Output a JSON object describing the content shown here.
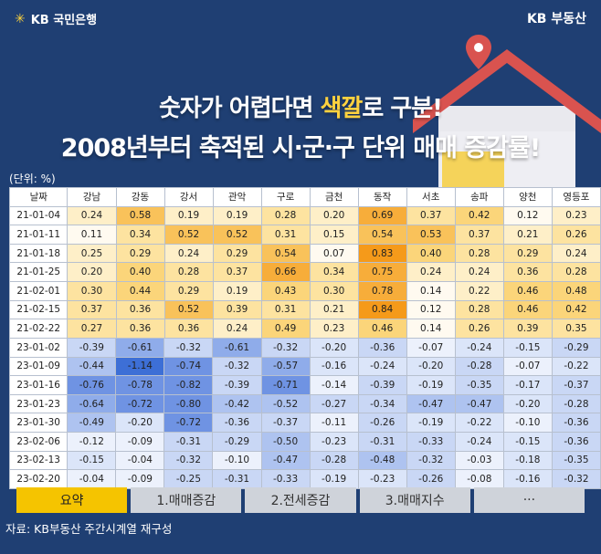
{
  "header": {
    "bank_name": "KB 국민은행",
    "brand_right": "KB 부동산"
  },
  "headline": {
    "line1_pre": "숫자가 어렵다면 ",
    "line1_highlight": "색깔",
    "line1_post": "로 구분!",
    "line2": "2008년부터 축적된 시·군·구 단위 매매 증감률!"
  },
  "unit_label": "(단위: %)",
  "columns": [
    "날짜",
    "강남",
    "강동",
    "강서",
    "관악",
    "구로",
    "금천",
    "동작",
    "서초",
    "송파",
    "양천",
    "영등포"
  ],
  "rows_2021": [
    [
      "21-01-04",
      "0.24",
      "0.58",
      "0.19",
      "0.19",
      "0.28",
      "0.20",
      "0.69",
      "0.37",
      "0.42",
      "0.12",
      "0.23"
    ],
    [
      "21-01-11",
      "0.11",
      "0.34",
      "0.52",
      "0.52",
      "0.31",
      "0.15",
      "0.54",
      "0.53",
      "0.37",
      "0.21",
      "0.26"
    ],
    [
      "21-01-18",
      "0.25",
      "0.29",
      "0.24",
      "0.29",
      "0.54",
      "0.07",
      "0.83",
      "0.40",
      "0.28",
      "0.29",
      "0.24"
    ],
    [
      "21-01-25",
      "0.20",
      "0.40",
      "0.28",
      "0.37",
      "0.66",
      "0.34",
      "0.75",
      "0.24",
      "0.24",
      "0.36",
      "0.28"
    ],
    [
      "21-02-01",
      "0.30",
      "0.44",
      "0.29",
      "0.19",
      "0.43",
      "0.30",
      "0.78",
      "0.14",
      "0.22",
      "0.46",
      "0.48"
    ],
    [
      "21-02-15",
      "0.37",
      "0.36",
      "0.52",
      "0.39",
      "0.31",
      "0.21",
      "0.84",
      "0.12",
      "0.28",
      "0.46",
      "0.42"
    ],
    [
      "21-02-22",
      "0.27",
      "0.36",
      "0.36",
      "0.24",
      "0.49",
      "0.23",
      "0.46",
      "0.14",
      "0.26",
      "0.39",
      "0.35"
    ]
  ],
  "rows_2023": [
    [
      "23-01-02",
      "-0.39",
      "-0.61",
      "-0.32",
      "-0.61",
      "-0.32",
      "-0.20",
      "-0.36",
      "-0.07",
      "-0.24",
      "-0.15",
      "-0.29"
    ],
    [
      "23-01-09",
      "-0.44",
      "-1.14",
      "-0.74",
      "-0.32",
      "-0.57",
      "-0.16",
      "-0.24",
      "-0.20",
      "-0.28",
      "-0.07",
      "-0.22"
    ],
    [
      "23-01-16",
      "-0.76",
      "-0.78",
      "-0.82",
      "-0.39",
      "-0.71",
      "-0.14",
      "-0.39",
      "-0.19",
      "-0.35",
      "-0.17",
      "-0.37"
    ],
    [
      "23-01-23",
      "-0.64",
      "-0.72",
      "-0.80",
      "-0.42",
      "-0.52",
      "-0.27",
      "-0.34",
      "-0.47",
      "-0.47",
      "-0.20",
      "-0.28"
    ],
    [
      "23-01-30",
      "-0.49",
      "-0.20",
      "-0.72",
      "-0.36",
      "-0.37",
      "-0.11",
      "-0.26",
      "-0.19",
      "-0.22",
      "-0.10",
      "-0.36"
    ],
    [
      "23-02-06",
      "-0.12",
      "-0.09",
      "-0.31",
      "-0.29",
      "-0.50",
      "-0.23",
      "-0.31",
      "-0.33",
      "-0.24",
      "-0.15",
      "-0.36"
    ],
    [
      "23-02-13",
      "-0.15",
      "-0.04",
      "-0.32",
      "-0.10",
      "-0.47",
      "-0.28",
      "-0.48",
      "-0.32",
      "-0.03",
      "-0.18",
      "-0.35"
    ],
    [
      "23-02-20",
      "-0.04",
      "-0.09",
      "-0.25",
      "-0.31",
      "-0.33",
      "-0.19",
      "-0.23",
      "-0.26",
      "-0.08",
      "-0.16",
      "-0.32"
    ]
  ],
  "tabs": [
    "요약",
    "1.매매증감",
    "2.전세증감",
    "3.매매지수",
    "···"
  ],
  "source": "자료: KB부동산 주간시계열 재구성",
  "colors": {
    "background": "#1f3f73",
    "highlight": "#ffd23f",
    "tab_active": "#f5c400",
    "tab_inactive": "#cfd3da"
  }
}
